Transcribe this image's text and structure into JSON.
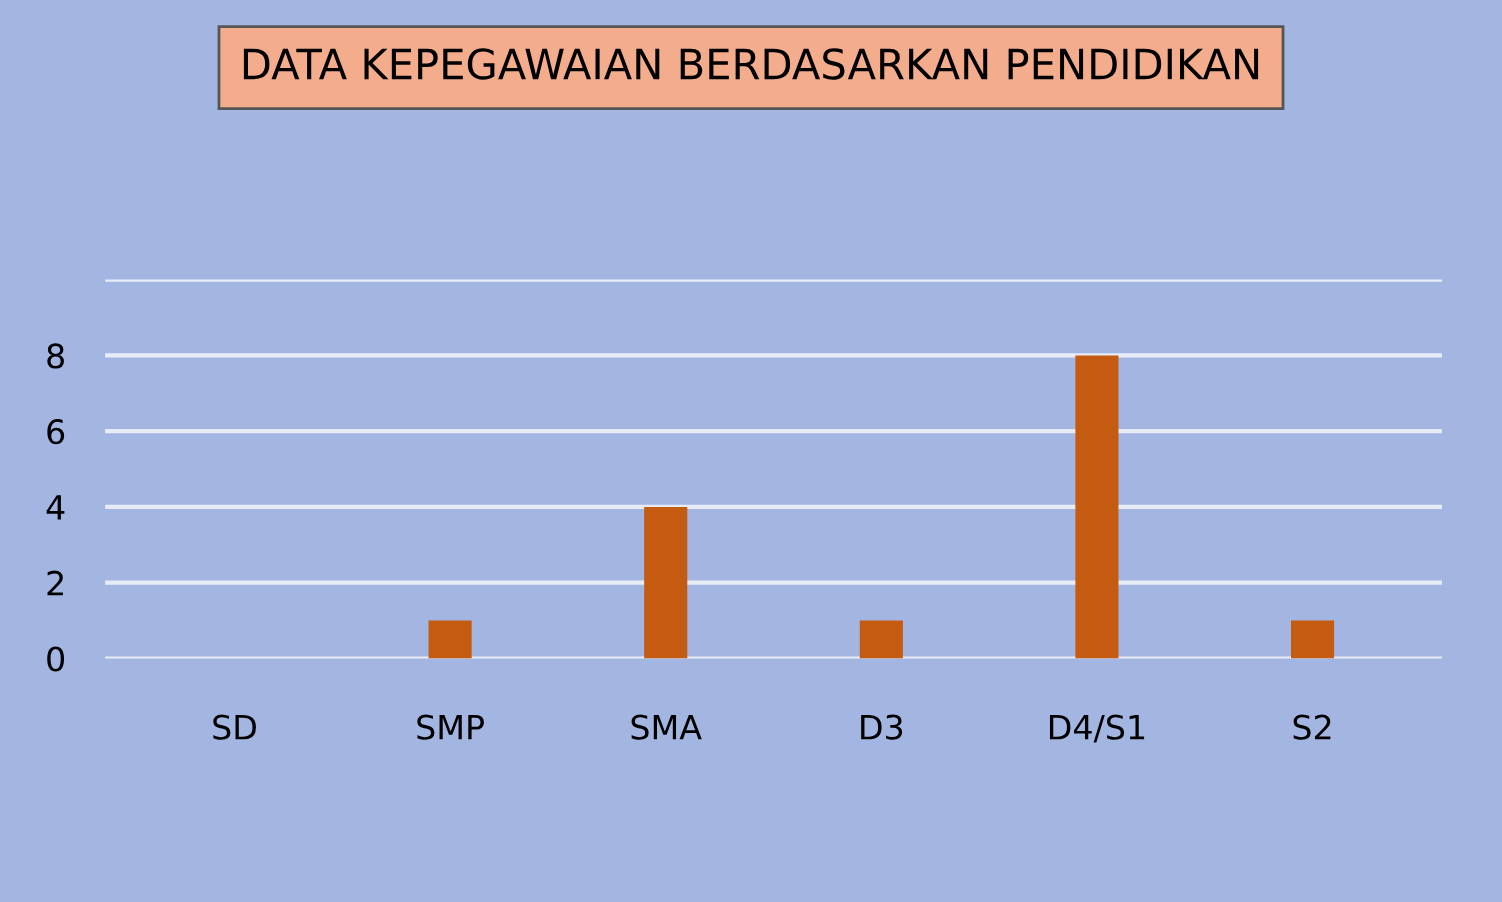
{
  "chart_data": {
    "type": "bar",
    "title": "DATA KEPEGAWAIAN BERDASARKAN PENDIDIKAN",
    "categories": [
      "SD",
      "SMP",
      "SMA",
      "D3",
      "D4/S1",
      "S2"
    ],
    "values": [
      0,
      1,
      4,
      1,
      8,
      1
    ],
    "color": "#c55a11",
    "ylim": [
      0,
      10
    ],
    "yticks": [
      0,
      2,
      4,
      6,
      8,
      {
        "value": 10,
        "label": null
      }
    ],
    "grid": "y"
  }
}
